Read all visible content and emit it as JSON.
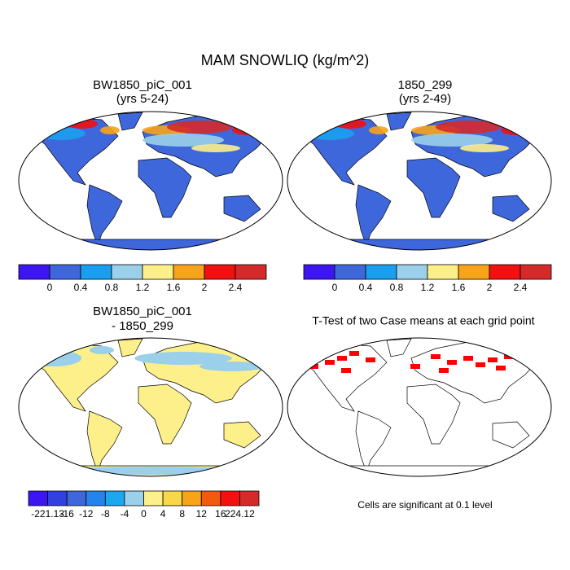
{
  "title": "MAM SNOWLIQ (kg/m^2)",
  "panels": [
    {
      "title": "BW1850_piC_001",
      "subtitle": "(yrs 5-24)"
    },
    {
      "title": "1850_299",
      "subtitle": "(yrs 2-49)"
    },
    {
      "title": "BW1850_piC_001",
      "subtitle": "- 1850_299"
    },
    {
      "title": "T-Test of two Case means at each grid point"
    }
  ],
  "colorbars": [
    {
      "colors": [
        "#3d14f2",
        "#3f67dc",
        "#1a9ff0",
        "#9bd0ea",
        "#fdf08a",
        "#f7a41a",
        "#f21010",
        "#d42a2a"
      ],
      "labels": [
        "0",
        "0.4",
        "0.8",
        "1.2",
        "1.6",
        "2",
        "2.4"
      ]
    },
    {
      "colors": [
        "#3d14f2",
        "#3f67dc",
        "#1a9ff0",
        "#9bd0ea",
        "#fdf08a",
        "#f7a41a",
        "#f21010",
        "#d42a2a"
      ],
      "labels": [
        "0",
        "0.4",
        "0.8",
        "1.2",
        "1.6",
        "2",
        "2.4"
      ]
    },
    {
      "colors": [
        "#3d14f2",
        "#3340e0",
        "#3f67dc",
        "#2583ec",
        "#1aa8f0",
        "#9bd0ea",
        "#fdf08a",
        "#f8d84a",
        "#f7a41a",
        "#f25a10",
        "#f21010",
        "#d42a2a"
      ],
      "labels": [
        "-221.13",
        "-16",
        "-12",
        "-8",
        "-4",
        "0",
        "4",
        "8",
        "12",
        "16",
        "224.12"
      ]
    }
  ],
  "note": "Cells are significant at 0.1 level"
}
